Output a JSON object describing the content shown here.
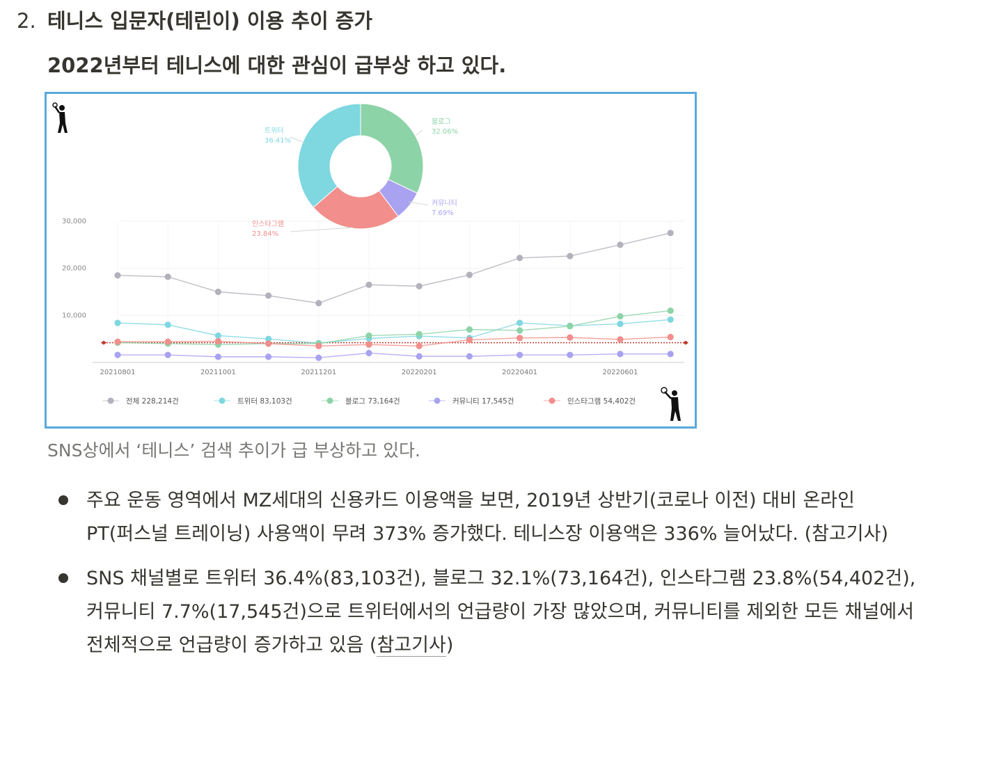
{
  "heading": {
    "number": "2.",
    "text": "테니스 입문자(테린이) 이용 추이 증가"
  },
  "subheading": "2022년부터 테니스에 대한 관심이 급부상 하고 있다.",
  "caption": "SNS상에서 ‘테니스’ 검색 추이가 급 부상하고 있다.",
  "bullets": [
    {
      "line1": "주요 운동 영역에서 MZ세대의 신용카드 이용액을 보면, 2019년 상반기(코로나 이전) 대비 온라인",
      "line2": "PT(퍼스널 트레이닝) 사용액이 무려 373% 증가했다. 테니스장 이용액은 336% 늘어났다. (참고기사)"
    },
    {
      "line1": "SNS 채널별로 트위터 36.4%(83,103건), 블로그 32.1%(73,164건), 인스타그램 23.8%(54,402건),",
      "line2": "커뮤니티 7.7%(17,545건)으로 트위터에서의 언급량이 가장 많았으며, 커뮤니티를 제외한 모든 채널에서",
      "line3_pre": "전체적으로 언급량이 증가하고 있음 (",
      "line3_link": "참고기사",
      "line3_post": ")"
    }
  ],
  "chart_data": [
    {
      "type": "pie",
      "donut": true,
      "slices": [
        {
          "label": "블로그",
          "pct_label": "32.06%",
          "value": 32.06,
          "color": "#8dd3a8"
        },
        {
          "label": "커뮤니티",
          "pct_label": "7.69%",
          "value": 7.69,
          "color": "#a9a2f0"
        },
        {
          "label": "인스타그램",
          "pct_label": "23.84%",
          "value": 23.84,
          "color": "#f28e8b"
        },
        {
          "label": "트위터",
          "pct_label": "36.41%",
          "value": 36.41,
          "color": "#7fd7e0"
        }
      ]
    },
    {
      "type": "line",
      "ylim": [
        0,
        30000
      ],
      "yticks": [
        {
          "value": 10000,
          "label": "10,000"
        },
        {
          "value": 20000,
          "label": "20,000"
        },
        {
          "value": 30000,
          "label": "30,000"
        }
      ],
      "x": [
        "202108",
        "202109",
        "202110",
        "202111",
        "202112",
        "202201",
        "202202",
        "202203",
        "202204",
        "202205",
        "202206",
        "202207"
      ],
      "xtick_labels": [
        "20210801",
        "",
        "20211001",
        "",
        "20211201",
        "",
        "20220201",
        "",
        "20220401",
        "",
        "20220601",
        ""
      ],
      "reference_value": 4200,
      "reference_color": "#c0392b",
      "series": [
        {
          "name": "전체",
          "legend": "전체 228,214건",
          "color": "#b3b1bb",
          "values": [
            18500,
            18200,
            15000,
            14200,
            12600,
            16500,
            16200,
            18600,
            22200,
            22600,
            25000,
            27500
          ]
        },
        {
          "name": "트위터",
          "legend": "트위터 83,103건",
          "color": "#7fd7e0",
          "values": [
            8400,
            8000,
            5700,
            5000,
            4100,
            5100,
            5600,
            5200,
            8400,
            7800,
            8200,
            9100
          ]
        },
        {
          "name": "블로그",
          "legend": "블로그 73,164건",
          "color": "#8dd3a8",
          "values": [
            4200,
            4000,
            3800,
            4000,
            4000,
            5700,
            6000,
            7000,
            6800,
            7700,
            9800,
            11000
          ]
        },
        {
          "name": "커뮤니티",
          "legend": "커뮤니티 17,545건",
          "color": "#a9a2f0",
          "values": [
            1600,
            1600,
            1200,
            1200,
            1000,
            2000,
            1300,
            1300,
            1600,
            1600,
            1800,
            1800
          ]
        },
        {
          "name": "인스타그램",
          "legend": "인스타그램 54,402건",
          "color": "#f28e8b",
          "values": [
            4400,
            4400,
            4500,
            4000,
            3500,
            3800,
            3500,
            4800,
            5200,
            5300,
            4900,
            5400
          ]
        }
      ]
    }
  ]
}
